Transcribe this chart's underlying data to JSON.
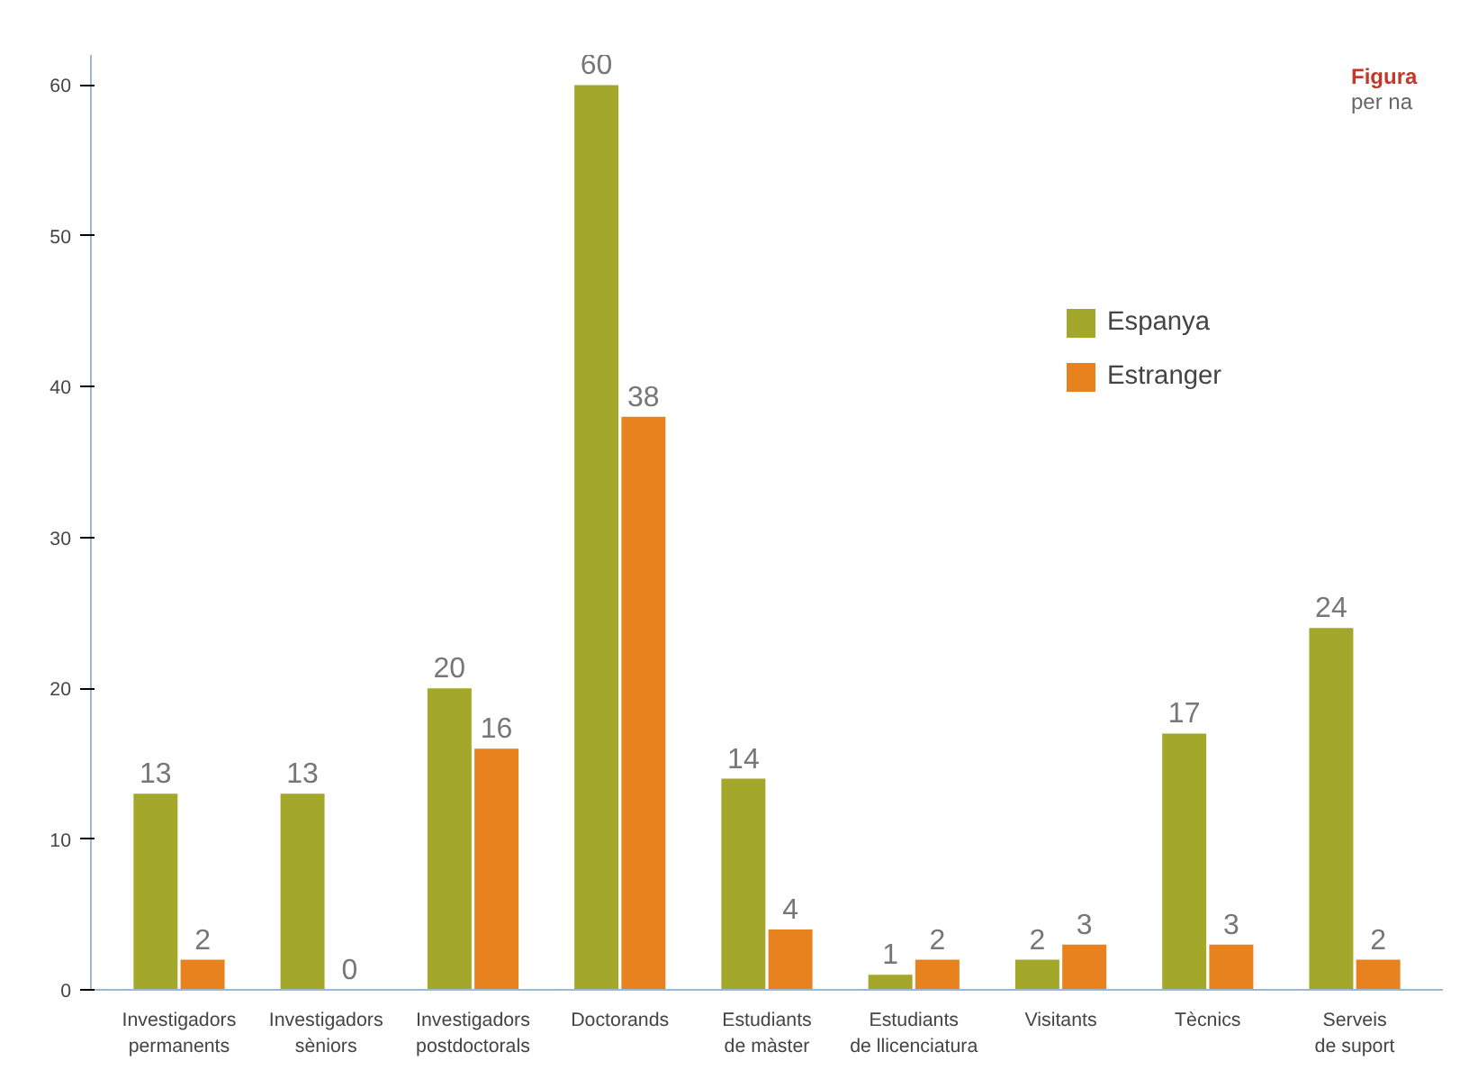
{
  "chart_data": {
    "type": "bar",
    "categories": [
      "Investigadors permanents",
      "Investigadors sèniors",
      "Investigadors postdoctorals",
      "Doctorands",
      "Estudiants de màster",
      "Estudiants de llicenciatura",
      "Visitants",
      "Tècnics",
      "Serveis de suport"
    ],
    "series": [
      {
        "name": "Espanya",
        "color": "#a3a82a",
        "values": [
          13,
          13,
          20,
          60,
          14,
          1,
          2,
          17,
          24
        ]
      },
      {
        "name": "Estranger",
        "color": "#e8821e",
        "values": [
          2,
          0,
          16,
          38,
          4,
          2,
          3,
          3,
          2
        ]
      }
    ],
    "ylim": [
      0,
      62
    ],
    "yticks": [
      0,
      10,
      20,
      30,
      40,
      50,
      60
    ],
    "data_labels": true,
    "grid": false,
    "legend": "right",
    "annotations": [
      "Figura",
      "per na"
    ]
  }
}
